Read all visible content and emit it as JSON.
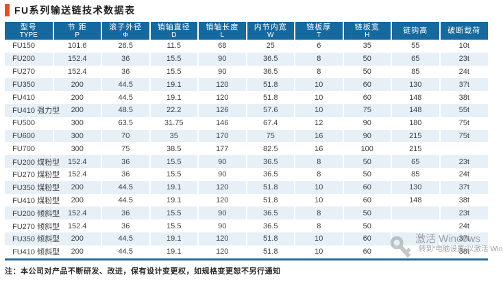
{
  "title": "FU系列输送链技术数据表",
  "table": {
    "columns": [
      {
        "label": "型号",
        "sub": "TYPE"
      },
      {
        "label": "节 距",
        "sub": "P"
      },
      {
        "label": "滚子外径",
        "sub": "Φ"
      },
      {
        "label": "销轴直径",
        "sub": "D"
      },
      {
        "label": "销轴长度",
        "sub": "L"
      },
      {
        "label": "内节内宽",
        "sub": "W"
      },
      {
        "label": "链板厚",
        "sub": "T"
      },
      {
        "label": "链板宽",
        "sub": "H"
      },
      {
        "label": "链钩高",
        "sub": ""
      },
      {
        "label": "破断载荷",
        "sub": ""
      }
    ],
    "rows": [
      [
        "FU150",
        "101.6",
        "26.5",
        "11.5",
        "68",
        "25",
        "6",
        "35",
        "55",
        "10t"
      ],
      [
        "FU200",
        "152.4",
        "36",
        "15.5",
        "90",
        "36.5",
        "8",
        "50",
        "65",
        "23t"
      ],
      [
        "FU270",
        "152.4",
        "36",
        "15.5",
        "90",
        "36.5",
        "8",
        "50",
        "85",
        "24t"
      ],
      [
        "FU350",
        "200",
        "44.5",
        "19.1",
        "120",
        "51.8",
        "10",
        "60",
        "130",
        "37t"
      ],
      [
        "FU410",
        "200",
        "44.5",
        "19.1",
        "120",
        "51.8",
        "10",
        "60",
        "148",
        "38t"
      ],
      [
        "FU410 强力型",
        "200",
        "48.5",
        "22.2",
        "126",
        "57.6",
        "10",
        "75",
        "148",
        "55t"
      ],
      [
        "FU500",
        "300",
        "63.5",
        "31.75",
        "146",
        "67.4",
        "12",
        "90",
        "180",
        "75t"
      ],
      [
        "FU600",
        "300",
        "70",
        "35",
        "170",
        "75",
        "16",
        "90",
        "215",
        "75t"
      ],
      [
        "FU700",
        "300",
        "75",
        "38.5",
        "177",
        "82.5",
        "16",
        "100",
        "215",
        ""
      ],
      [
        "FU200 煤粉型",
        "152.4",
        "36",
        "15.5",
        "90",
        "36.5",
        "8",
        "50",
        "65",
        "23t"
      ],
      [
        "FU270 煤粉型",
        "152.4",
        "36",
        "15.5",
        "90",
        "36.5",
        "8",
        "50",
        "85",
        "24t"
      ],
      [
        "FU350 煤粉型",
        "200",
        "44.5",
        "19.1",
        "120",
        "51.8",
        "10",
        "60",
        "130",
        "37t"
      ],
      [
        "FU410 煤粉型",
        "200",
        "44.5",
        "19.1",
        "120",
        "51.8",
        "10",
        "60",
        "148",
        "38t"
      ],
      [
        "FU200 倾斜型",
        "152.4",
        "36",
        "15.5",
        "90",
        "36.5",
        "8",
        "50",
        "",
        "23t"
      ],
      [
        "FU270 倾斜型",
        "152.4",
        "36",
        "15.5",
        "90",
        "36.5",
        "8",
        "50",
        "",
        "24t"
      ],
      [
        "FU350 倾斜型",
        "200",
        "44.5",
        "19.1",
        "120",
        "51.8",
        "10",
        "60",
        "",
        "37t"
      ],
      [
        "FU410 倾斜型",
        "200",
        "44.5",
        "19.1",
        "120",
        "51.8",
        "10",
        "60",
        "",
        "38t"
      ]
    ]
  },
  "note": "注：本公司对产品不断研发、改进，保有设计变更权，如规格变更恕不另行通知",
  "watermark": {
    "line1": "激活 Windows",
    "line2": "转到“电脑设置”以激活 Win"
  },
  "colors": {
    "accent_orange": "#e0512a",
    "header_blue": "#16699e",
    "row_alt_blue": "#e7f0f7",
    "bottom_border_blue": "#1b6ba2",
    "watermark_gray": "#8f8f8f"
  }
}
